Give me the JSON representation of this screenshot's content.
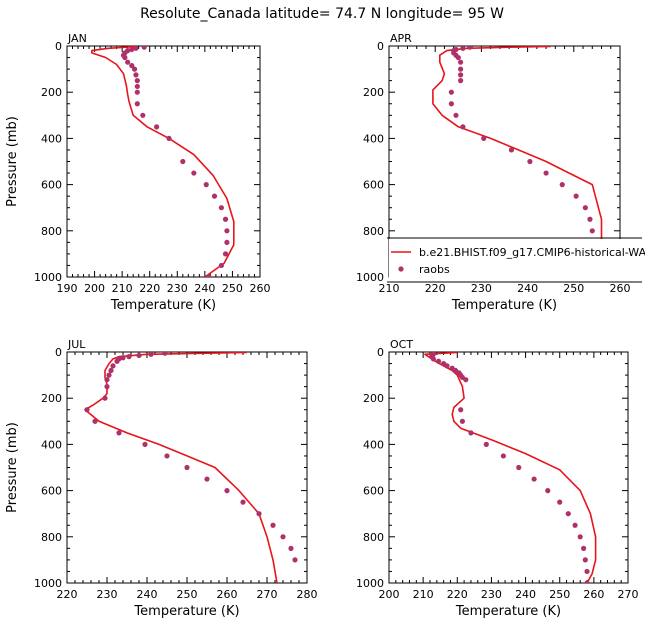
{
  "title": "Resolute_Canada   latitude= 74.7 N longitude= 95 W",
  "legend": {
    "model_label": "b.e21.BHIST.f09_g17.CMIP6-historical-WACCM.001",
    "obs_label": "raobs"
  },
  "colors": {
    "model_line": "#e8141c",
    "obs_marker": "#b0316a"
  },
  "chart_data": [
    {
      "type": "line",
      "title": "JAN",
      "xlabel": "Temperature (K)",
      "ylabel": "Pressure (mb)",
      "xlim": [
        190,
        260
      ],
      "ylim": [
        1000,
        0
      ],
      "xticks": [
        190,
        200,
        210,
        220,
        230,
        240,
        250,
        260
      ],
      "yticks": [
        0,
        200,
        400,
        600,
        800,
        1000
      ],
      "model": {
        "name": "b.e21.BHIST.f09_g17.CMIP6-historical-WACCM.001",
        "x": [
          215,
          205,
          199,
          199,
          204,
          208,
          210.5,
          211.5,
          212,
          212.5,
          214,
          219,
          227,
          236,
          243,
          248,
          250.5,
          250.5,
          247,
          240
        ],
        "y": [
          2,
          10,
          20,
          30,
          50,
          80,
          120,
          170,
          210,
          240,
          300,
          350,
          400,
          470,
          560,
          660,
          760,
          860,
          940,
          1000
        ]
      },
      "obs": {
        "name": "raobs",
        "x": [
          218,
          215,
          213.5,
          212,
          211,
          210.5,
          211,
          212,
          213.5,
          214.5,
          215,
          215.5,
          215.5,
          215.5,
          215.5,
          217.5,
          222.5,
          227,
          232,
          236,
          240.5,
          243.5,
          246,
          247.5,
          248,
          248,
          247.5,
          246,
          241.5
        ],
        "y": [
          5,
          10,
          15,
          20,
          30,
          40,
          50,
          70,
          85,
          100,
          125,
          150,
          175,
          200,
          250,
          300,
          350,
          400,
          500,
          550,
          600,
          650,
          700,
          750,
          800,
          850,
          900,
          950,
          1000
        ]
      }
    },
    {
      "type": "line",
      "title": "APR",
      "xlabel": "Temperature (K)",
      "ylabel": "",
      "xlim": [
        210,
        260
      ],
      "ylim": [
        1000,
        0
      ],
      "xticks": [
        210,
        220,
        230,
        240,
        250,
        260
      ],
      "yticks": [
        0,
        200,
        400,
        600,
        800,
        1000
      ],
      "model": {
        "name": "b.e21.BHIST.f09_g17.CMIP6-historical-WACCM.001",
        "x": [
          245,
          236,
          227,
          222.5,
          221,
          221,
          222,
          221.5,
          219.5,
          219.5,
          221.5,
          225,
          232,
          238,
          244,
          249,
          254,
          256,
          256,
          255,
          252.5
        ],
        "y": [
          2,
          5,
          10,
          20,
          40,
          70,
          120,
          150,
          190,
          250,
          300,
          350,
          400,
          450,
          500,
          550,
          600,
          750,
          850,
          900,
          1000
        ]
      },
      "obs": {
        "name": "raobs",
        "x": [
          227.5,
          226,
          224.5,
          224,
          224,
          224.5,
          225,
          225.5,
          225.5,
          225.5,
          225.5,
          223.5,
          223.5,
          224.5,
          226,
          230.5,
          236.5,
          240.5,
          244,
          247.5,
          250.5,
          252.5,
          253.5,
          254,
          254,
          253.5,
          251
        ],
        "y": [
          5,
          10,
          15,
          20,
          30,
          40,
          50,
          70,
          100,
          125,
          150,
          200,
          250,
          300,
          350,
          400,
          450,
          500,
          550,
          600,
          650,
          700,
          750,
          800,
          850,
          900,
          1000
        ]
      }
    },
    {
      "type": "line",
      "title": "JUL",
      "xlabel": "Temperature (K)",
      "ylabel": "Pressure (mb)",
      "xlim": [
        220,
        280
      ],
      "ylim": [
        1000,
        0
      ],
      "xticks": [
        220,
        230,
        240,
        250,
        260,
        270,
        280
      ],
      "yticks": [
        0,
        200,
        400,
        600,
        800,
        1000
      ],
      "model": {
        "name": "b.e21.BHIST.f09_g17.CMIP6-historical-WACCM.001",
        "x": [
          265,
          255,
          240,
          233,
          231.5,
          230.5,
          229.5,
          229.5,
          230,
          230,
          229,
          226.5,
          224.5,
          228,
          235,
          243,
          250,
          257,
          263,
          268,
          270,
          271.5,
          272.5
        ],
        "y": [
          2,
          5,
          10,
          20,
          30,
          50,
          80,
          110,
          140,
          180,
          200,
          230,
          250,
          300,
          350,
          400,
          450,
          500,
          600,
          700,
          800,
          900,
          1000
        ]
      },
      "obs": {
        "name": "raobs",
        "x": [
          244.5,
          241,
          238,
          235.5,
          234,
          233,
          232.5,
          231.5,
          231,
          230.5,
          230,
          230,
          229.5,
          225,
          227,
          233,
          239.5,
          245,
          250,
          255,
          260,
          264,
          268,
          271.5,
          274,
          276,
          277
        ],
        "y": [
          5,
          10,
          15,
          20,
          25,
          30,
          40,
          60,
          80,
          100,
          120,
          150,
          200,
          250,
          300,
          350,
          400,
          450,
          500,
          550,
          600,
          650,
          700,
          750,
          800,
          850,
          900
        ]
      }
    },
    {
      "type": "line",
      "title": "OCT",
      "xlabel": "Temperature (K)",
      "ylabel": "",
      "xlim": [
        200,
        270
      ],
      "ylim": [
        1000,
        0
      ],
      "xticks": [
        200,
        210,
        220,
        230,
        240,
        250,
        260,
        270
      ],
      "yticks": [
        0,
        200,
        400,
        600,
        800,
        1000
      ],
      "model": {
        "name": "b.e21.BHIST.f09_g17.CMIP6-historical-WACCM.001",
        "x": [
          220,
          210.5,
          211.5,
          213.5,
          216,
          218.5,
          220,
          221.5,
          222,
          219,
          218.5,
          219,
          221,
          230,
          240,
          250,
          256,
          259,
          260.5,
          260.5,
          259.5,
          258
        ],
        "y": [
          2,
          10,
          20,
          40,
          60,
          80,
          100,
          150,
          200,
          240,
          270,
          300,
          330,
          380,
          440,
          510,
          600,
          700,
          800,
          900,
          960,
          1000
        ]
      },
      "obs": {
        "name": "raobs",
        "x": [
          213,
          212.5,
          213,
          214.5,
          216,
          217,
          218.5,
          219.5,
          220.5,
          221,
          221.5,
          222.5,
          221,
          221.5,
          224,
          228.5,
          233.5,
          238,
          242.5,
          246.5,
          250,
          252.5,
          254.5,
          256,
          257,
          257.5,
          258,
          258
        ],
        "y": [
          10,
          20,
          30,
          40,
          50,
          60,
          70,
          80,
          90,
          100,
          110,
          120,
          250,
          300,
          350,
          400,
          450,
          500,
          550,
          600,
          650,
          700,
          750,
          800,
          850,
          900,
          950,
          1000
        ]
      }
    }
  ]
}
